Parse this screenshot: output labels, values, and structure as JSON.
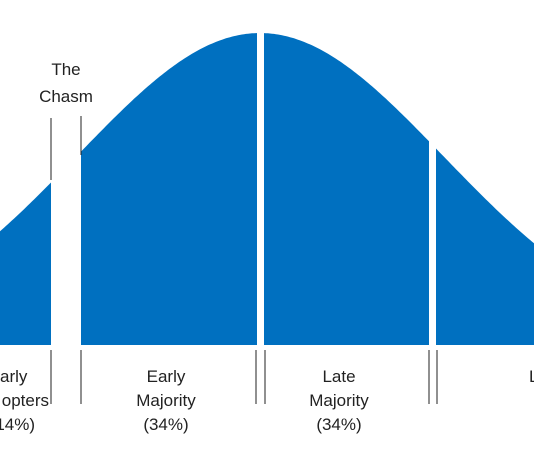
{
  "chasm": {
    "lines": [
      "The",
      "Chasm"
    ]
  },
  "segments": [
    {
      "lines": [
        "arly",
        "opters",
        "14%)"
      ]
    },
    {
      "lines": [
        "Early",
        "Majority",
        "(34%)"
      ]
    },
    {
      "lines": [
        "Late",
        "Majority",
        "(34%)"
      ]
    },
    {
      "lines": [
        "L"
      ]
    }
  ]
}
